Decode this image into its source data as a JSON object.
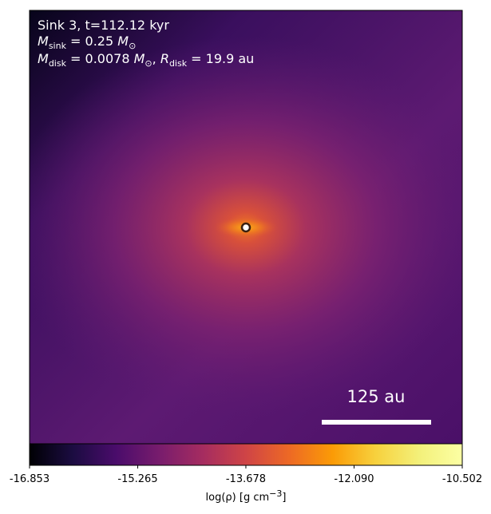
{
  "chart_data": {
    "type": "heatmap",
    "annotation_lines": [
      [
        "Sink 3, t=112.12 kyr"
      ],
      [
        "M",
        "sink",
        " = 0.25 ",
        "M",
        "⊙"
      ],
      [
        "M",
        "disk",
        " = 0.0078 ",
        "M",
        "⊙",
        ", ",
        "R",
        "disk",
        " = 19.9 au"
      ]
    ],
    "scale_bar_label": "125 au",
    "colorbar_label": [
      "log(ρ) [g cm",
      "−3",
      "]"
    ],
    "clim": [
      -16.853,
      -10.502
    ],
    "cticks": [
      -16.853,
      -15.265,
      -13.678,
      {
        "value": -12.09,
        "label": "-12.090"
      },
      -10.502
    ],
    "colormap": "inferno"
  }
}
